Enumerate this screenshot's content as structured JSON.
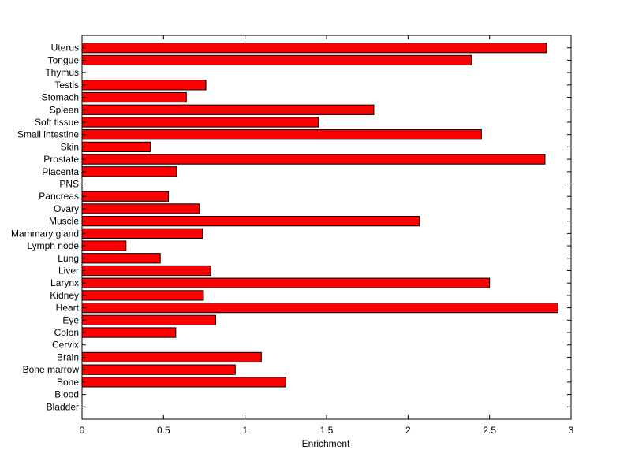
{
  "chart_data": {
    "type": "bar",
    "orientation": "horizontal",
    "xlabel": "Enrichment",
    "xlim": [
      0,
      3
    ],
    "x_ticks": [
      0,
      0.5,
      1,
      1.5,
      2,
      2.5,
      3
    ],
    "x_tick_labels": [
      "0",
      "0.5",
      "1",
      "1.5",
      "2",
      "2.5",
      "3"
    ],
    "grid": false,
    "bar_color": "#ff0000",
    "categories": [
      "Uterus",
      "Tongue",
      "Thymus",
      "Testis",
      "Stomach",
      "Spleen",
      "Soft tissue",
      "Small intestine",
      "Skin",
      "Prostate",
      "Placenta",
      "PNS",
      "Pancreas",
      "Ovary",
      "Muscle",
      "Mammary gland",
      "Lymph node",
      "Lung",
      "Liver",
      "Larynx",
      "Kidney",
      "Heart",
      "Eye",
      "Colon",
      "Cervix",
      "Brain",
      "Bone marrow",
      "Bone",
      "Blood",
      "Bladder"
    ],
    "values": [
      2.85,
      2.39,
      0,
      0.76,
      0.64,
      1.79,
      1.45,
      2.45,
      0.42,
      2.84,
      0.58,
      0,
      0.53,
      0.72,
      2.07,
      0.74,
      0.27,
      0.48,
      0.79,
      2.5,
      0.745,
      2.92,
      0.82,
      0.575,
      0,
      1.1,
      0.94,
      1.25,
      0,
      0
    ]
  }
}
